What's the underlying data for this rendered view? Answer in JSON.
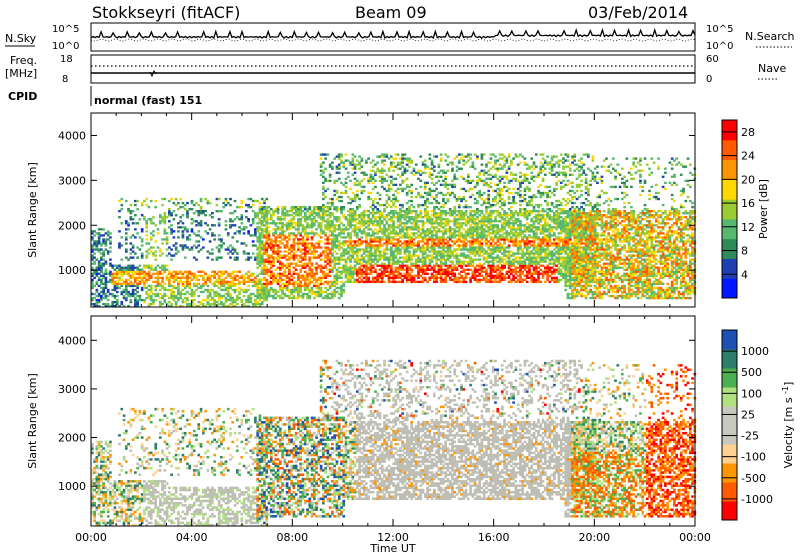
{
  "header": {
    "station": "Stokkseyri (fitACF)",
    "beam": "Beam 09",
    "date": "03/Feb/2014"
  },
  "panels": {
    "nsky": {
      "label": "N.Sky",
      "top_tick": "10^5",
      "bottom_tick": "10^0"
    },
    "nsearch": {
      "label": "N.Search",
      "top_tick": "10^5",
      "bottom_tick": "10^0"
    },
    "freq": {
      "label": "Freq.",
      "unit": "[MHz]",
      "top_tick": "18",
      "bottom_tick": "8"
    },
    "nave": {
      "label": "Nave",
      "top_tick": "60",
      "bottom_tick": "0"
    },
    "cpid": {
      "label": "CPID",
      "value": "normal (fast) 151"
    }
  },
  "colors": {
    "power_scale": [
      "#0018ff",
      "#1e40b0",
      "#2e8b57",
      "#57b870",
      "#9acd32",
      "#ffd700",
      "#ff9500",
      "#ff5a00",
      "#ff0000"
    ],
    "velocity_scale": [
      "#ff0000",
      "#ff5a00",
      "#ff9500",
      "#ffd090",
      "#c8c8be",
      "#c8c8be",
      "#b0e080",
      "#4caf50",
      "#2e7d6a",
      "#1e50b4"
    ],
    "ground_scatter": "#bebeb4"
  },
  "chart_data": [
    {
      "type": "heatmap",
      "name": "power",
      "ylabel": "Slant Range [km]",
      "ylim": [
        180,
        4500
      ],
      "yticks": [
        "1000",
        "2000",
        "3000",
        "4000"
      ],
      "xlim": [
        0,
        24
      ],
      "x_tick_labels": [
        "00:00",
        "04:00",
        "08:00",
        "12:00",
        "16:00",
        "20:00",
        "00:00"
      ],
      "colorbar_label": "Power [dB]",
      "colorbar_ticks": [
        "4",
        "8",
        "12",
        "16",
        "20",
        "24",
        "28"
      ],
      "colorbar_range": [
        0,
        30
      ]
    },
    {
      "type": "heatmap",
      "name": "velocity",
      "ylabel": "Slant Range [km]",
      "ylim": [
        180,
        4500
      ],
      "yticks": [
        "1000",
        "2000",
        "3000",
        "4000"
      ],
      "xlim": [
        0,
        24
      ],
      "x_tick_labels": [
        "00:00",
        "04:00",
        "08:00",
        "12:00",
        "16:00",
        "20:00",
        "00:00"
      ],
      "xlabel": "Time UT",
      "colorbar_label": "Velocity [m s^-1]",
      "colorbar_ticks": [
        "1000",
        "500",
        "100",
        "25",
        "-25",
        "-100",
        "-500",
        "-1000"
      ]
    }
  ]
}
